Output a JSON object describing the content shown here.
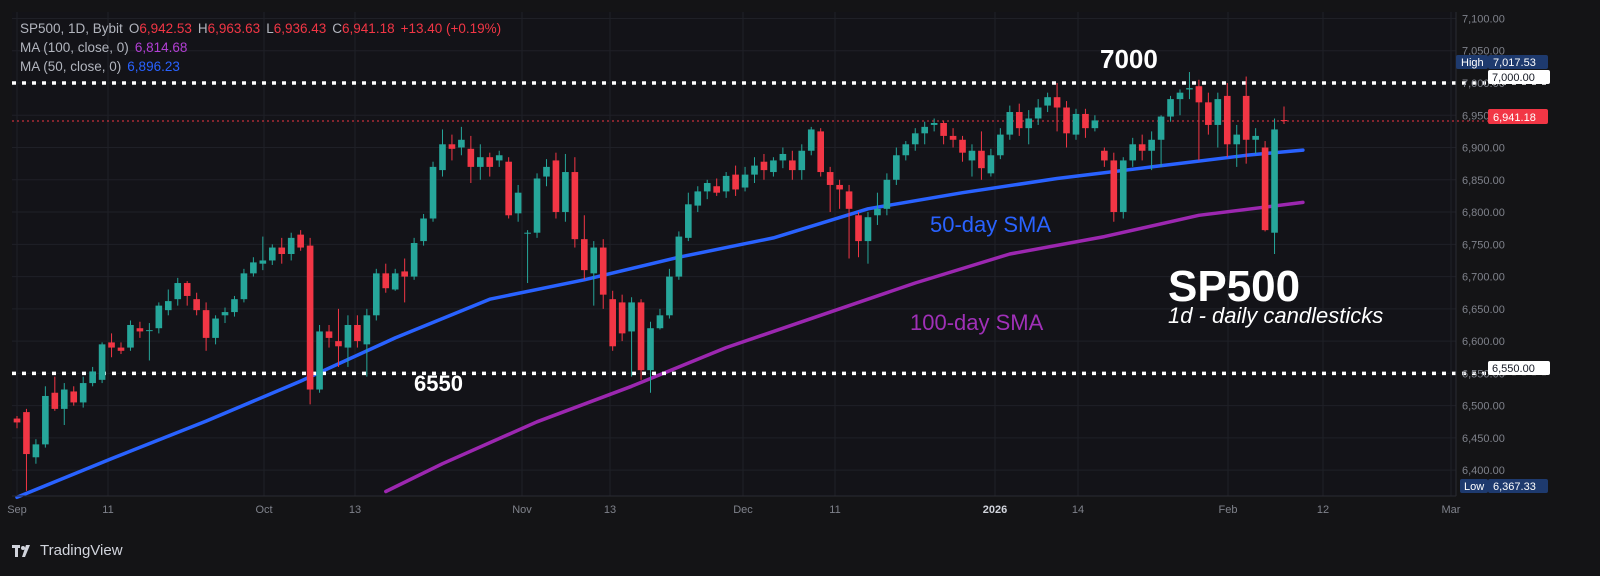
{
  "header": {
    "symbol": "SP500, 1D, Bybit",
    "ohlc": {
      "o_label": "O",
      "o": "6,942.53",
      "h_label": "H",
      "h": "6,963.63",
      "l_label": "L",
      "l": "6,936.43",
      "c_label": "C",
      "c": "6,941.18",
      "change": "+13.40 (+0.19%)"
    },
    "ma100": {
      "label": "MA (100, close, 0)",
      "value": "6,814.68"
    },
    "ma50": {
      "label": "MA (50, close, 0)",
      "value": "6,896.23"
    }
  },
  "annotations": {
    "level_7000": "7000",
    "level_6550": "6550",
    "sma50_label": "50-day SMA",
    "sma100_label": "100-day SMA",
    "title": "SP500",
    "subtitle": "1d - daily candlesticks"
  },
  "price_axis": {
    "high_label": "High",
    "high_value": "7,017.53",
    "round_level": "7,000.00",
    "last_value": "6,941.18",
    "support_level": "6,550.00",
    "low_label": "Low",
    "low_value": "6,367.33"
  },
  "footer": {
    "brand": "TradingView"
  },
  "colors": {
    "up": "#26a69a",
    "down": "#f23645",
    "sma50": "#2962ff",
    "sma100": "#9c27b0",
    "background": "#141416"
  },
  "chart_data": {
    "type": "candlestick",
    "title": "SP500",
    "subtitle": "1d - daily candlesticks",
    "ylim": [
      6360,
      7110
    ],
    "y_ticks": [
      7100,
      7050,
      7000,
      6950,
      6900,
      6850,
      6800,
      6750,
      6700,
      6650,
      6600,
      6550,
      6500,
      6450,
      6400
    ],
    "x_ticks": [
      "Sep",
      "11",
      "Oct",
      "13",
      "Nov",
      "13",
      "Dec",
      "11",
      "2026",
      "14",
      "Feb",
      "12",
      "Mar"
    ],
    "horizontal_levels": [
      7000,
      6550
    ],
    "candles": [
      {
        "o": 6480,
        "h": 6484,
        "l": 6465,
        "c": 6474
      },
      {
        "o": 6490,
        "h": 6495,
        "l": 6368,
        "c": 6425
      },
      {
        "o": 6420,
        "h": 6448,
        "l": 6410,
        "c": 6440
      },
      {
        "o": 6440,
        "h": 6530,
        "l": 6435,
        "c": 6515
      },
      {
        "o": 6520,
        "h": 6545,
        "l": 6492,
        "c": 6495
      },
      {
        "o": 6495,
        "h": 6535,
        "l": 6470,
        "c": 6525
      },
      {
        "o": 6522,
        "h": 6530,
        "l": 6500,
        "c": 6505
      },
      {
        "o": 6505,
        "h": 6545,
        "l": 6497,
        "c": 6535
      },
      {
        "o": 6535,
        "h": 6560,
        "l": 6530,
        "c": 6553
      },
      {
        "o": 6540,
        "h": 6598,
        "l": 6535,
        "c": 6595
      },
      {
        "o": 6598,
        "h": 6612,
        "l": 6575,
        "c": 6590
      },
      {
        "o": 6590,
        "h": 6598,
        "l": 6580,
        "c": 6585
      },
      {
        "o": 6590,
        "h": 6632,
        "l": 6585,
        "c": 6625
      },
      {
        "o": 6620,
        "h": 6630,
        "l": 6605,
        "c": 6615
      },
      {
        "o": 6617,
        "h": 6628,
        "l": 6570,
        "c": 6617
      },
      {
        "o": 6620,
        "h": 6660,
        "l": 6612,
        "c": 6655
      },
      {
        "o": 6648,
        "h": 6680,
        "l": 6640,
        "c": 6662
      },
      {
        "o": 6665,
        "h": 6698,
        "l": 6655,
        "c": 6690
      },
      {
        "o": 6690,
        "h": 6693,
        "l": 6655,
        "c": 6670
      },
      {
        "o": 6665,
        "h": 6675,
        "l": 6640,
        "c": 6648
      },
      {
        "o": 6648,
        "h": 6660,
        "l": 6585,
        "c": 6605
      },
      {
        "o": 6605,
        "h": 6640,
        "l": 6595,
        "c": 6635
      },
      {
        "o": 6640,
        "h": 6652,
        "l": 6628,
        "c": 6645
      },
      {
        "o": 6645,
        "h": 6670,
        "l": 6638,
        "c": 6665
      },
      {
        "o": 6665,
        "h": 6712,
        "l": 6660,
        "c": 6705
      },
      {
        "o": 6705,
        "h": 6730,
        "l": 6700,
        "c": 6722
      },
      {
        "o": 6720,
        "h": 6762,
        "l": 6710,
        "c": 6725
      },
      {
        "o": 6725,
        "h": 6750,
        "l": 6718,
        "c": 6745
      },
      {
        "o": 6745,
        "h": 6760,
        "l": 6720,
        "c": 6735
      },
      {
        "o": 6735,
        "h": 6768,
        "l": 6725,
        "c": 6760
      },
      {
        "o": 6765,
        "h": 6772,
        "l": 6740,
        "c": 6745
      },
      {
        "o": 6748,
        "h": 6760,
        "l": 6502,
        "c": 6525
      },
      {
        "o": 6525,
        "h": 6625,
        "l": 6520,
        "c": 6615
      },
      {
        "o": 6615,
        "h": 6625,
        "l": 6590,
        "c": 6605
      },
      {
        "o": 6600,
        "h": 6650,
        "l": 6560,
        "c": 6592
      },
      {
        "o": 6590,
        "h": 6640,
        "l": 6560,
        "c": 6625
      },
      {
        "o": 6625,
        "h": 6640,
        "l": 6590,
        "c": 6600
      },
      {
        "o": 6595,
        "h": 6650,
        "l": 6545,
        "c": 6640
      },
      {
        "o": 6640,
        "h": 6712,
        "l": 6632,
        "c": 6705
      },
      {
        "o": 6705,
        "h": 6720,
        "l": 6675,
        "c": 6682
      },
      {
        "o": 6680,
        "h": 6712,
        "l": 6678,
        "c": 6705
      },
      {
        "o": 6708,
        "h": 6728,
        "l": 6660,
        "c": 6700
      },
      {
        "o": 6700,
        "h": 6760,
        "l": 6695,
        "c": 6752
      },
      {
        "o": 6755,
        "h": 6797,
        "l": 6748,
        "c": 6790
      },
      {
        "o": 6790,
        "h": 6878,
        "l": 6785,
        "c": 6870
      },
      {
        "o": 6865,
        "h": 6928,
        "l": 6855,
        "c": 6905
      },
      {
        "o": 6905,
        "h": 6920,
        "l": 6880,
        "c": 6898
      },
      {
        "o": 6900,
        "h": 6932,
        "l": 6888,
        "c": 6912
      },
      {
        "o": 6898,
        "h": 6918,
        "l": 6845,
        "c": 6870
      },
      {
        "o": 6870,
        "h": 6905,
        "l": 6850,
        "c": 6885
      },
      {
        "o": 6885,
        "h": 6892,
        "l": 6855,
        "c": 6870
      },
      {
        "o": 6880,
        "h": 6895,
        "l": 6870,
        "c": 6888
      },
      {
        "o": 6878,
        "h": 6885,
        "l": 6790,
        "c": 6795
      },
      {
        "o": 6798,
        "h": 6842,
        "l": 6785,
        "c": 6830
      },
      {
        "o": 6768,
        "h": 6772,
        "l": 6690,
        "c": 6768
      },
      {
        "o": 6768,
        "h": 6860,
        "l": 6760,
        "c": 6852
      },
      {
        "o": 6855,
        "h": 6882,
        "l": 6840,
        "c": 6870
      },
      {
        "o": 6880,
        "h": 6892,
        "l": 6790,
        "c": 6800
      },
      {
        "o": 6800,
        "h": 6890,
        "l": 6785,
        "c": 6862
      },
      {
        "o": 6862,
        "h": 6885,
        "l": 6745,
        "c": 6758
      },
      {
        "o": 6758,
        "h": 6795,
        "l": 6695,
        "c": 6710
      },
      {
        "o": 6705,
        "h": 6755,
        "l": 6655,
        "c": 6745
      },
      {
        "o": 6745,
        "h": 6758,
        "l": 6650,
        "c": 6672
      },
      {
        "o": 6665,
        "h": 6678,
        "l": 6585,
        "c": 6592
      },
      {
        "o": 6660,
        "h": 6672,
        "l": 6600,
        "c": 6612
      },
      {
        "o": 6615,
        "h": 6668,
        "l": 6545,
        "c": 6660
      },
      {
        "o": 6660,
        "h": 6665,
        "l": 6540,
        "c": 6555
      },
      {
        "o": 6555,
        "h": 6630,
        "l": 6520,
        "c": 6620
      },
      {
        "o": 6620,
        "h": 6650,
        "l": 6618,
        "c": 6640
      },
      {
        "o": 6640,
        "h": 6712,
        "l": 6635,
        "c": 6700
      },
      {
        "o": 6700,
        "h": 6770,
        "l": 6695,
        "c": 6762
      },
      {
        "o": 6760,
        "h": 6830,
        "l": 6755,
        "c": 6812
      },
      {
        "o": 6810,
        "h": 6840,
        "l": 6800,
        "c": 6832
      },
      {
        "o": 6832,
        "h": 6850,
        "l": 6820,
        "c": 6845
      },
      {
        "o": 6840,
        "h": 6852,
        "l": 6825,
        "c": 6830
      },
      {
        "o": 6832,
        "h": 6862,
        "l": 6822,
        "c": 6856
      },
      {
        "o": 6858,
        "h": 6872,
        "l": 6825,
        "c": 6835
      },
      {
        "o": 6838,
        "h": 6870,
        "l": 6832,
        "c": 6858
      },
      {
        "o": 6858,
        "h": 6885,
        "l": 6845,
        "c": 6872
      },
      {
        "o": 6878,
        "h": 6890,
        "l": 6850,
        "c": 6865
      },
      {
        "o": 6862,
        "h": 6885,
        "l": 6855,
        "c": 6880
      },
      {
        "o": 6880,
        "h": 6900,
        "l": 6868,
        "c": 6890
      },
      {
        "o": 6880,
        "h": 6895,
        "l": 6850,
        "c": 6865
      },
      {
        "o": 6865,
        "h": 6905,
        "l": 6850,
        "c": 6895
      },
      {
        "o": 6895,
        "h": 6932,
        "l": 6888,
        "c": 6928
      },
      {
        "o": 6925,
        "h": 6930,
        "l": 6855,
        "c": 6862
      },
      {
        "o": 6862,
        "h": 6870,
        "l": 6800,
        "c": 6842
      },
      {
        "o": 6842,
        "h": 6850,
        "l": 6805,
        "c": 6835
      },
      {
        "o": 6832,
        "h": 6842,
        "l": 6728,
        "c": 6805
      },
      {
        "o": 6795,
        "h": 6800,
        "l": 6730,
        "c": 6755
      },
      {
        "o": 6755,
        "h": 6800,
        "l": 6720,
        "c": 6792
      },
      {
        "o": 6795,
        "h": 6830,
        "l": 6780,
        "c": 6805
      },
      {
        "o": 6805,
        "h": 6860,
        "l": 6795,
        "c": 6850
      },
      {
        "o": 6850,
        "h": 6900,
        "l": 6842,
        "c": 6888
      },
      {
        "o": 6888,
        "h": 6910,
        "l": 6880,
        "c": 6905
      },
      {
        "o": 6905,
        "h": 6930,
        "l": 6895,
        "c": 6922
      },
      {
        "o": 6922,
        "h": 6940,
        "l": 6905,
        "c": 6932
      },
      {
        "o": 6935,
        "h": 6945,
        "l": 6925,
        "c": 6938
      },
      {
        "o": 6938,
        "h": 6942,
        "l": 6905,
        "c": 6918
      },
      {
        "o": 6918,
        "h": 6930,
        "l": 6900,
        "c": 6912
      },
      {
        "o": 6912,
        "h": 6918,
        "l": 6878,
        "c": 6892
      },
      {
        "o": 6880,
        "h": 6905,
        "l": 6855,
        "c": 6895
      },
      {
        "o": 6895,
        "h": 6925,
        "l": 6850,
        "c": 6868
      },
      {
        "o": 6860,
        "h": 6898,
        "l": 6855,
        "c": 6888
      },
      {
        "o": 6888,
        "h": 6930,
        "l": 6882,
        "c": 6920
      },
      {
        "o": 6920,
        "h": 6965,
        "l": 6912,
        "c": 6955
      },
      {
        "o": 6955,
        "h": 6968,
        "l": 6918,
        "c": 6930
      },
      {
        "o": 6930,
        "h": 6958,
        "l": 6905,
        "c": 6945
      },
      {
        "o": 6945,
        "h": 6975,
        "l": 6935,
        "c": 6962
      },
      {
        "o": 6965,
        "h": 6985,
        "l": 6955,
        "c": 6978
      },
      {
        "o": 6978,
        "h": 7000,
        "l": 6925,
        "c": 6962
      },
      {
        "o": 6962,
        "h": 6972,
        "l": 6900,
        "c": 6922
      },
      {
        "o": 6920,
        "h": 6960,
        "l": 6912,
        "c": 6952
      },
      {
        "o": 6952,
        "h": 6960,
        "l": 6915,
        "c": 6930
      },
      {
        "o": 6930,
        "h": 6950,
        "l": 6925,
        "c": 6942
      },
      {
        "o": 6895,
        "h": 6900,
        "l": 6870,
        "c": 6880
      },
      {
        "o": 6880,
        "h": 6892,
        "l": 6785,
        "c": 6800
      },
      {
        "o": 6800,
        "h": 6885,
        "l": 6790,
        "c": 6880
      },
      {
        "o": 6880,
        "h": 6915,
        "l": 6870,
        "c": 6905
      },
      {
        "o": 6905,
        "h": 6920,
        "l": 6880,
        "c": 6895
      },
      {
        "o": 6895,
        "h": 6925,
        "l": 6865,
        "c": 6912
      },
      {
        "o": 6912,
        "h": 6950,
        "l": 6870,
        "c": 6948
      },
      {
        "o": 6948,
        "h": 6980,
        "l": 6940,
        "c": 6975
      },
      {
        "o": 6975,
        "h": 6990,
        "l": 6950,
        "c": 6985
      },
      {
        "o": 6990,
        "h": 7017,
        "l": 6975,
        "c": 6992
      },
      {
        "o": 6995,
        "h": 7005,
        "l": 6880,
        "c": 6970
      },
      {
        "o": 6970,
        "h": 6985,
        "l": 6920,
        "c": 6935
      },
      {
        "o": 6935,
        "h": 6985,
        "l": 6900,
        "c": 6975
      },
      {
        "o": 6980,
        "h": 7000,
        "l": 6885,
        "c": 6905
      },
      {
        "o": 6905,
        "h": 6935,
        "l": 6870,
        "c": 6920
      },
      {
        "o": 6980,
        "h": 7010,
        "l": 6875,
        "c": 6912
      },
      {
        "o": 6912,
        "h": 6930,
        "l": 6890,
        "c": 6918
      },
      {
        "o": 6900,
        "h": 6910,
        "l": 6770,
        "c": 6772
      },
      {
        "o": 6768,
        "h": 6945,
        "l": 6735,
        "c": 6928
      },
      {
        "o": 6942.53,
        "h": 6963.63,
        "l": 6936.43,
        "c": 6941.18
      }
    ],
    "series": [
      {
        "name": "50-day SMA",
        "x": [
          0,
          10,
          20,
          30,
          40,
          50,
          60,
          70,
          80,
          90,
          100,
          110,
          120,
          130,
          136
        ],
        "values": [
          6358,
          6418,
          6476,
          6538,
          6605,
          6665,
          6695,
          6730,
          6760,
          6805,
          6830,
          6852,
          6870,
          6888,
          6896
        ]
      },
      {
        "name": "100-day SMA",
        "x": [
          39,
          45,
          55,
          65,
          75,
          85,
          95,
          105,
          115,
          125,
          136
        ],
        "values": [
          6367,
          6410,
          6475,
          6530,
          6590,
          6640,
          6690,
          6735,
          6762,
          6795,
          6815
        ]
      }
    ]
  }
}
